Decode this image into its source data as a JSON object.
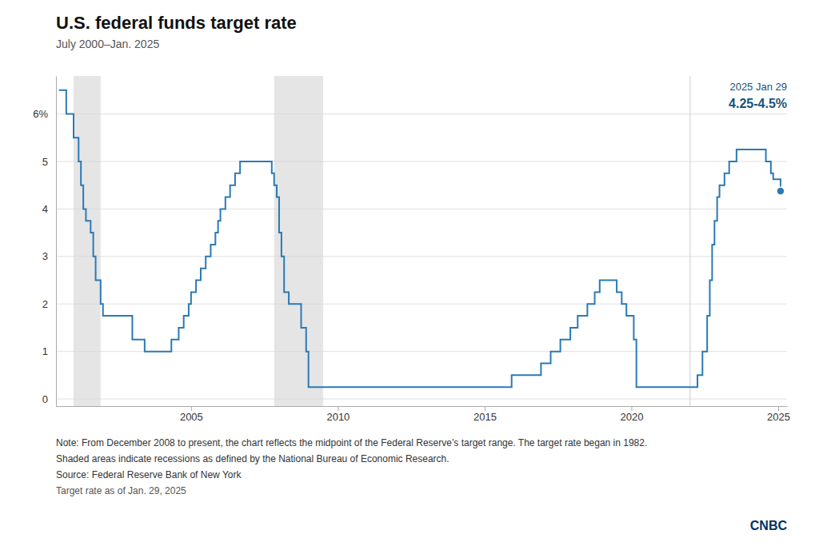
{
  "chart_data": {
    "type": "line",
    "line_style": "step",
    "title": "U.S. federal funds target rate",
    "subtitle": "July 2000–Jan. 2025",
    "color": "#2a7ab5",
    "grid": true,
    "x": [
      2000.5,
      2000.583,
      2000.75,
      2001.0,
      2001.08,
      2001.17,
      2001.25,
      2001.33,
      2001.42,
      2001.58,
      2001.67,
      2001.75,
      2001.92,
      2002.0,
      2002.92,
      2003.0,
      2003.25,
      2003.42,
      2003.5,
      2004.17,
      2004.33,
      2004.58,
      2004.75,
      2004.92,
      2005.0,
      2005.17,
      2005.33,
      2005.5,
      2005.67,
      2005.83,
      2005.92,
      2006.0,
      2006.17,
      2006.33,
      2006.5,
      2006.67,
      2006.75,
      2007.67,
      2007.75,
      2007.83,
      2007.92,
      2008.0,
      2008.08,
      2008.17,
      2008.33,
      2008.42,
      2008.58,
      2008.75,
      2008.92,
      2009.0,
      2009.08,
      2015.5,
      2015.92,
      2016.0,
      2016.92,
      2017.25,
      2017.58,
      2017.92,
      2018.17,
      2018.5,
      2018.75,
      2018.92,
      2019.0,
      2019.25,
      2019.5,
      2019.67,
      2019.83,
      2020.0,
      2020.08,
      2020.17,
      2020.25,
      2022.08,
      2022.25,
      2022.42,
      2022.58,
      2022.67,
      2022.75,
      2022.83,
      2022.92,
      2023.0,
      2023.17,
      2023.33,
      2023.5,
      2023.58,
      2023.67,
      2024.5,
      2024.58,
      2024.75,
      2024.83,
      2025.08
    ],
    "values": [
      6.5,
      6.5,
      6.0,
      5.5,
      5.5,
      5.0,
      4.5,
      4.0,
      3.75,
      3.5,
      3.0,
      2.5,
      2.0,
      1.75,
      1.75,
      1.25,
      1.25,
      1.0,
      1.0,
      1.0,
      1.25,
      1.5,
      1.75,
      2.0,
      2.25,
      2.5,
      2.75,
      3.0,
      3.25,
      3.5,
      3.75,
      4.0,
      4.25,
      4.5,
      4.75,
      5.0,
      5.0,
      5.0,
      4.75,
      4.5,
      4.25,
      3.5,
      3.0,
      2.25,
      2.0,
      2.0,
      2.0,
      1.5,
      1.0,
      0.25,
      0.25,
      0.25,
      0.5,
      0.5,
      0.75,
      1.0,
      1.25,
      1.5,
      1.75,
      2.0,
      2.25,
      2.5,
      2.5,
      2.5,
      2.25,
      2.0,
      1.75,
      1.75,
      1.25,
      0.25,
      0.25,
      0.25,
      0.5,
      1.0,
      1.75,
      2.5,
      3.25,
      3.75,
      4.25,
      4.5,
      4.75,
      5.0,
      5.0,
      5.25,
      5.25,
      5.25,
      5.0,
      4.75,
      4.625,
      4.375
    ],
    "xlim": [
      2000.4,
      2025.3
    ],
    "xticks": [
      2005,
      2010,
      2015,
      2020,
      2025
    ],
    "ylim": [
      -0.15,
      6.8
    ],
    "yticks": [
      0,
      1,
      2,
      3,
      4,
      5,
      {
        "value": 6,
        "label": "6%"
      }
    ],
    "recessions": [
      [
        2001.0,
        2001.92
      ],
      [
        2007.83,
        2009.5
      ]
    ],
    "vertical_lines": [
      2022.0
    ],
    "annotations": [
      "2025 Jan 29",
      "4.25-4.5%"
    ],
    "notes": [
      "Note: From December 2008 to present, the chart reflects the midpoint of the Federal Reserve’s target range. The target rate began in 1982.",
      "Shaded areas indicate recessions as defined by the National Bureau of Economic Research.",
      "Source: Federal Reserve Bank of New York",
      "Target rate as of Jan. 29, 2025"
    ],
    "logo": "CNBC"
  }
}
